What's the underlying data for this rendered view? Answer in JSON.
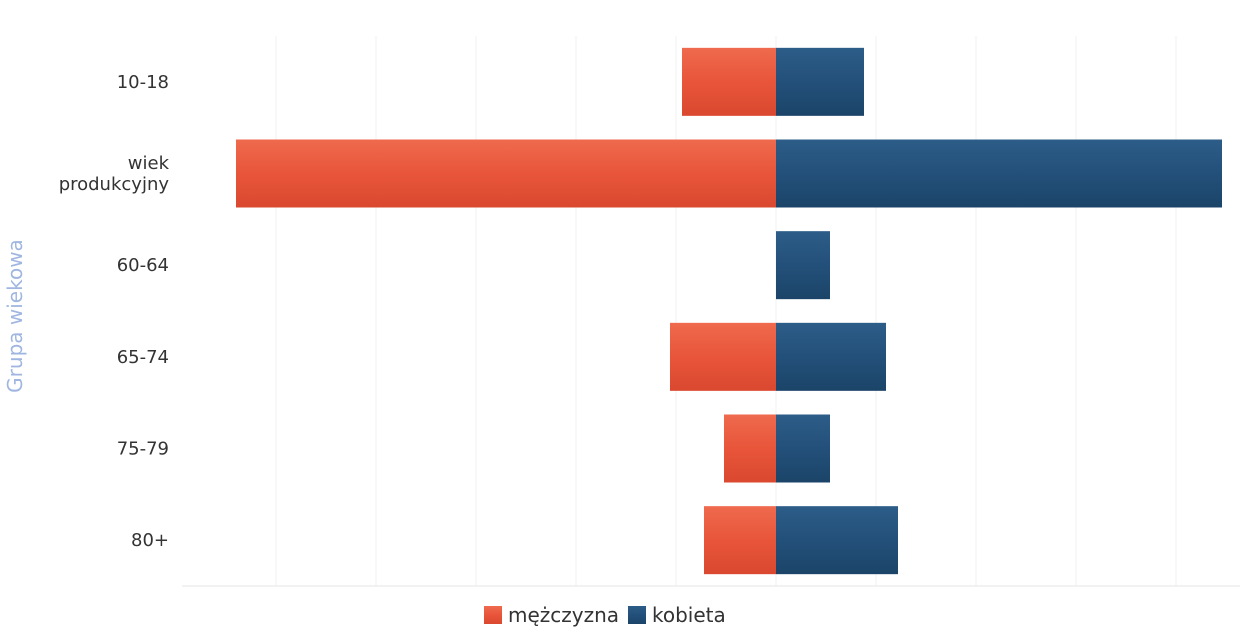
{
  "chart_data": {
    "type": "bar",
    "orientation": "horizontal",
    "stacking": "diverging",
    "ylabel": "Grupa wiekowa",
    "xlabel": "",
    "categories": [
      "10-18",
      "wiek\nprodukcyjny",
      "60-64",
      "65-74",
      "75-79",
      "80+"
    ],
    "xlim": [
      -270,
      230
    ],
    "grid": "vertical-faint",
    "series": [
      {
        "name": "mężczyzna",
        "color": "#e8553a",
        "values": [
          -47,
          -270,
          0,
          -53,
          -26,
          -36
        ]
      },
      {
        "name": "kobieta",
        "color": "#23507a",
        "values": [
          44,
          223,
          27,
          55,
          27,
          61
        ]
      }
    ],
    "legend": {
      "position": "bottom-center"
    }
  }
}
